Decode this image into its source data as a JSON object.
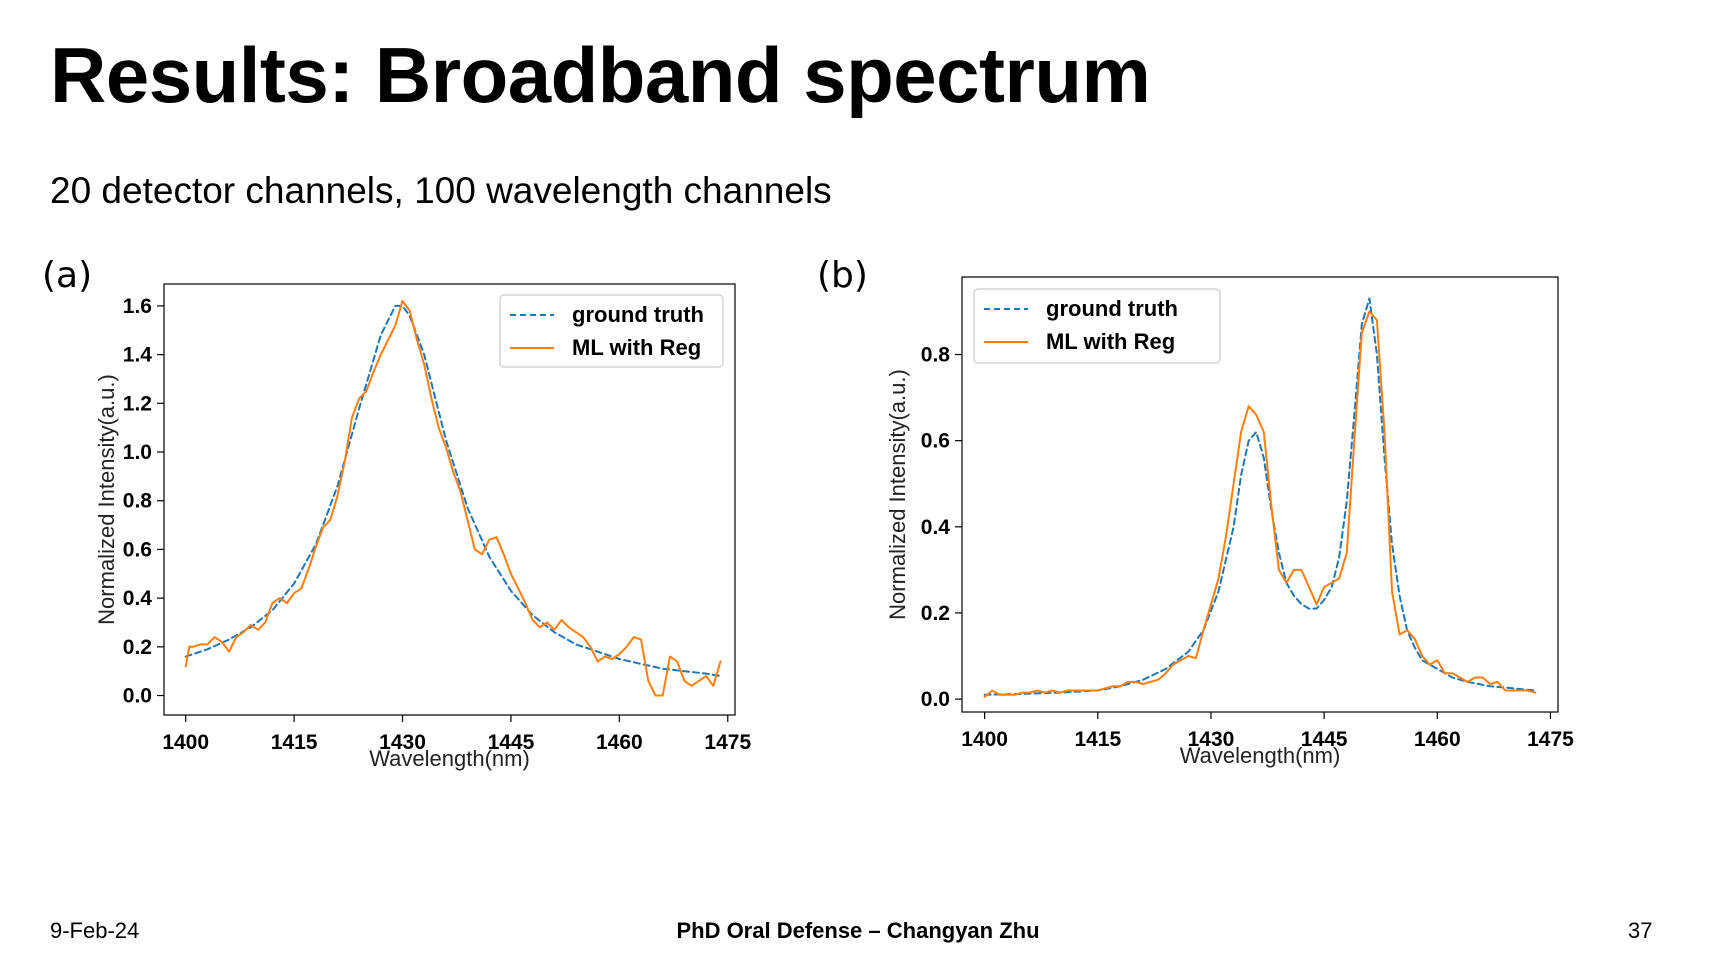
{
  "slide": {
    "title": "Results: Broadband spectrum",
    "subtitle": "20 detector channels,  100 wavelength channels"
  },
  "panels": [
    {
      "label": "(a)"
    },
    {
      "label": "(b)"
    }
  ],
  "footer": {
    "date": "9-Feb-24",
    "center": "PhD Oral Defense – Changyan Zhu",
    "page": "37"
  },
  "colors": {
    "ground_truth": "#1f77b4",
    "ml_with_reg": "#ff7f0e"
  },
  "chart_data": [
    {
      "type": "line",
      "xlabel": "Wavelength(nm)",
      "ylabel": "Normalized Intensity(a.u.)",
      "xlim": [
        1397,
        1476
      ],
      "ylim": [
        -0.08,
        1.69
      ],
      "xticks": [
        1400,
        1415,
        1430,
        1445,
        1460,
        1475
      ],
      "yticks": [
        0.0,
        0.2,
        0.4,
        0.6,
        0.8,
        1.0,
        1.2,
        1.4,
        1.6
      ],
      "ytick_labels": [
        "0.0",
        "0.2",
        "0.4",
        "0.6",
        "0.8",
        "1.0",
        "1.2",
        "1.4",
        "1.6"
      ],
      "legend_position": "top-right",
      "grid": false,
      "series": [
        {
          "name": "ground truth",
          "style": "dashed",
          "x": [
            1400,
            1403,
            1406,
            1409,
            1412,
            1415,
            1418,
            1421,
            1424,
            1427,
            1429,
            1430,
            1431,
            1433,
            1436,
            1439,
            1442,
            1445,
            1448,
            1451,
            1454,
            1457,
            1460,
            1463,
            1466,
            1469,
            1472,
            1474
          ],
          "y": [
            0.16,
            0.19,
            0.23,
            0.28,
            0.35,
            0.46,
            0.62,
            0.86,
            1.18,
            1.48,
            1.6,
            1.6,
            1.56,
            1.4,
            1.05,
            0.77,
            0.57,
            0.43,
            0.33,
            0.26,
            0.21,
            0.18,
            0.15,
            0.13,
            0.11,
            0.1,
            0.09,
            0.08
          ]
        },
        {
          "name": "ML with Reg",
          "style": "solid",
          "x": [
            1400,
            1400.5,
            1401,
            1402,
            1403,
            1404,
            1405,
            1406,
            1407,
            1408,
            1409,
            1410,
            1411,
            1412,
            1413,
            1414,
            1415,
            1416,
            1417,
            1418,
            1419,
            1420,
            1421,
            1422,
            1423,
            1424,
            1425,
            1426,
            1427,
            1428,
            1429,
            1430,
            1431,
            1432,
            1433,
            1434,
            1435,
            1436,
            1437,
            1438,
            1439,
            1440,
            1441,
            1442,
            1443,
            1444,
            1445,
            1446,
            1447,
            1448,
            1449,
            1450,
            1451,
            1452,
            1453,
            1454,
            1455,
            1456,
            1457,
            1458,
            1459,
            1460,
            1461,
            1462,
            1463,
            1464,
            1465,
            1466,
            1467,
            1468,
            1469,
            1470,
            1471,
            1472,
            1473,
            1474
          ],
          "y": [
            0.12,
            0.2,
            0.2,
            0.21,
            0.21,
            0.24,
            0.22,
            0.18,
            0.24,
            0.26,
            0.29,
            0.27,
            0.3,
            0.38,
            0.4,
            0.38,
            0.42,
            0.44,
            0.52,
            0.61,
            0.69,
            0.72,
            0.82,
            0.96,
            1.14,
            1.22,
            1.25,
            1.33,
            1.4,
            1.46,
            1.52,
            1.62,
            1.58,
            1.46,
            1.36,
            1.22,
            1.1,
            1.02,
            0.92,
            0.84,
            0.72,
            0.6,
            0.58,
            0.64,
            0.65,
            0.58,
            0.5,
            0.44,
            0.38,
            0.31,
            0.28,
            0.3,
            0.27,
            0.31,
            0.28,
            0.26,
            0.24,
            0.2,
            0.14,
            0.16,
            0.15,
            0.17,
            0.2,
            0.24,
            0.23,
            0.06,
            0.0,
            0.0,
            0.16,
            0.14,
            0.06,
            0.04,
            0.06,
            0.08,
            0.04,
            0.14
          ]
        }
      ]
    },
    {
      "type": "line",
      "xlabel": "Wavelength(nm)",
      "ylabel": "Normalized Intensity(a.u.)",
      "xlim": [
        1397,
        1476
      ],
      "ylim": [
        -0.03,
        0.98
      ],
      "xticks": [
        1400,
        1415,
        1430,
        1445,
        1460,
        1475
      ],
      "yticks": [
        0.0,
        0.2,
        0.4,
        0.6,
        0.8
      ],
      "ytick_labels": [
        "0.0",
        "0.2",
        "0.4",
        "0.6",
        "0.8"
      ],
      "legend_position": "top-left",
      "grid": false,
      "series": [
        {
          "name": "ground truth",
          "style": "dashed",
          "x": [
            1400,
            1405,
            1410,
            1415,
            1418,
            1421,
            1424,
            1427,
            1429,
            1431,
            1433,
            1434,
            1435,
            1436,
            1437,
            1438,
            1439,
            1440,
            1441,
            1442,
            1443,
            1444,
            1445,
            1446,
            1447,
            1448,
            1449,
            1450,
            1451,
            1452,
            1453,
            1454,
            1455,
            1456,
            1457,
            1458,
            1460,
            1462,
            1464,
            1467,
            1470,
            1473
          ],
          "y": [
            0.01,
            0.012,
            0.015,
            0.02,
            0.03,
            0.045,
            0.07,
            0.11,
            0.16,
            0.25,
            0.4,
            0.52,
            0.6,
            0.62,
            0.56,
            0.44,
            0.34,
            0.27,
            0.24,
            0.22,
            0.21,
            0.21,
            0.23,
            0.26,
            0.33,
            0.46,
            0.66,
            0.87,
            0.93,
            0.8,
            0.56,
            0.36,
            0.24,
            0.16,
            0.12,
            0.09,
            0.07,
            0.05,
            0.04,
            0.03,
            0.025,
            0.02
          ]
        },
        {
          "name": "ML with Reg",
          "style": "solid",
          "x": [
            1400,
            1401,
            1402,
            1403,
            1404,
            1405,
            1406,
            1407,
            1408,
            1409,
            1410,
            1411,
            1412,
            1413,
            1414,
            1415,
            1416,
            1417,
            1418,
            1419,
            1420,
            1421,
            1422,
            1423,
            1424,
            1425,
            1426,
            1427,
            1428,
            1429,
            1430,
            1431,
            1432,
            1433,
            1434,
            1435,
            1436,
            1437,
            1438,
            1439,
            1440,
            1441,
            1442,
            1443,
            1444,
            1445,
            1446,
            1447,
            1448,
            1449,
            1450,
            1451,
            1452,
            1453,
            1454,
            1455,
            1456,
            1457,
            1458,
            1459,
            1460,
            1461,
            1462,
            1463,
            1464,
            1465,
            1466,
            1467,
            1468,
            1469,
            1470,
            1471,
            1472,
            1473
          ],
          "y": [
            0.005,
            0.02,
            0.01,
            0.01,
            0.01,
            0.015,
            0.015,
            0.02,
            0.015,
            0.02,
            0.015,
            0.02,
            0.02,
            0.02,
            0.02,
            0.02,
            0.025,
            0.03,
            0.03,
            0.04,
            0.04,
            0.035,
            0.04,
            0.045,
            0.06,
            0.08,
            0.09,
            0.1,
            0.095,
            0.16,
            0.22,
            0.28,
            0.38,
            0.5,
            0.62,
            0.68,
            0.66,
            0.62,
            0.45,
            0.3,
            0.27,
            0.3,
            0.3,
            0.26,
            0.22,
            0.26,
            0.27,
            0.28,
            0.34,
            0.6,
            0.85,
            0.9,
            0.88,
            0.62,
            0.25,
            0.15,
            0.16,
            0.14,
            0.1,
            0.08,
            0.09,
            0.06,
            0.06,
            0.05,
            0.04,
            0.05,
            0.05,
            0.035,
            0.04,
            0.02,
            0.02,
            0.02,
            0.02,
            0.015
          ]
        }
      ]
    }
  ]
}
